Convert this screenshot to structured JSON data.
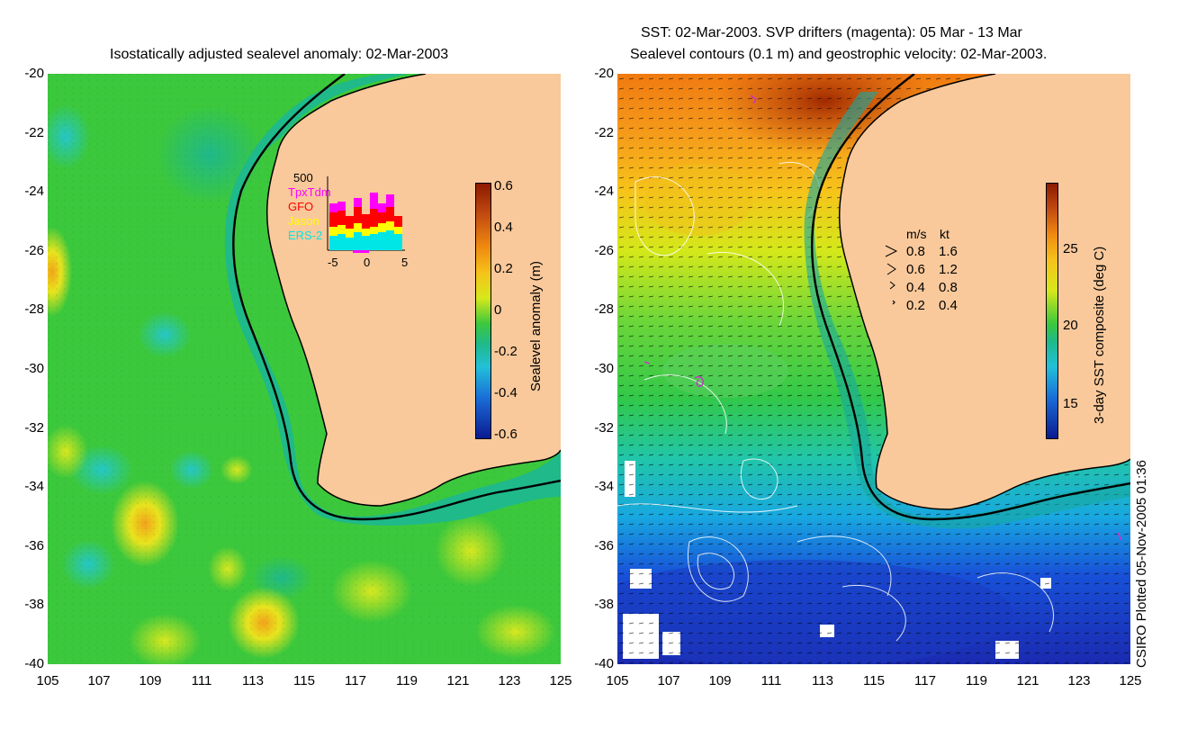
{
  "left_panel": {
    "title": "Isostatically adjusted sealevel anomaly: 02-Mar-2003",
    "colorbar": {
      "label": "Sealevel anomaly (m)",
      "ticks": [
        "0.6",
        "0.4",
        "0.2",
        "0",
        "-0.2",
        "-0.4",
        "-0.6"
      ]
    },
    "inset": {
      "ymax_label": "500",
      "legend": [
        {
          "name": "TpxTdm",
          "color": "#ff00ff"
        },
        {
          "name": "GFO",
          "color": "#ff0000"
        },
        {
          "name": "Jason",
          "color": "#ffff00"
        },
        {
          "name": "ERS-2",
          "color": "#00e5e5"
        }
      ],
      "xticks": [
        "-5",
        "0",
        "5"
      ]
    }
  },
  "right_panel": {
    "title_line1": "SST: 02-Mar-2003. SVP drifters (magenta): 05 Mar - 13 Mar",
    "title_line2": "Sealevel contours (0.1 m) and geostrophic velocity: 02-Mar-2003.",
    "colorbar": {
      "label": "3-day SST composite (deg C)",
      "ticks": [
        "25",
        "20",
        "15"
      ]
    },
    "velocity_legend": {
      "header_ms": "m/s",
      "header_kt": "kt",
      "rows": [
        {
          "ms": "0.8",
          "kt": "1.6"
        },
        {
          "ms": "0.6",
          "kt": "1.2"
        },
        {
          "ms": "0.4",
          "kt": "0.8"
        },
        {
          "ms": "0.2",
          "kt": "0.4"
        }
      ]
    }
  },
  "axes": {
    "lat_ticks": [
      "-20",
      "-22",
      "-24",
      "-26",
      "-28",
      "-30",
      "-32",
      "-34",
      "-36",
      "-38",
      "-40"
    ],
    "lon_ticks": [
      "105",
      "107",
      "109",
      "111",
      "113",
      "115",
      "117",
      "119",
      "121",
      "123",
      "125"
    ]
  },
  "credit": "CSIRO Plotted 05-Nov-2005 01:36",
  "colors": {
    "land": "#f9c99b",
    "ocean_green": "#3cc83c"
  }
}
